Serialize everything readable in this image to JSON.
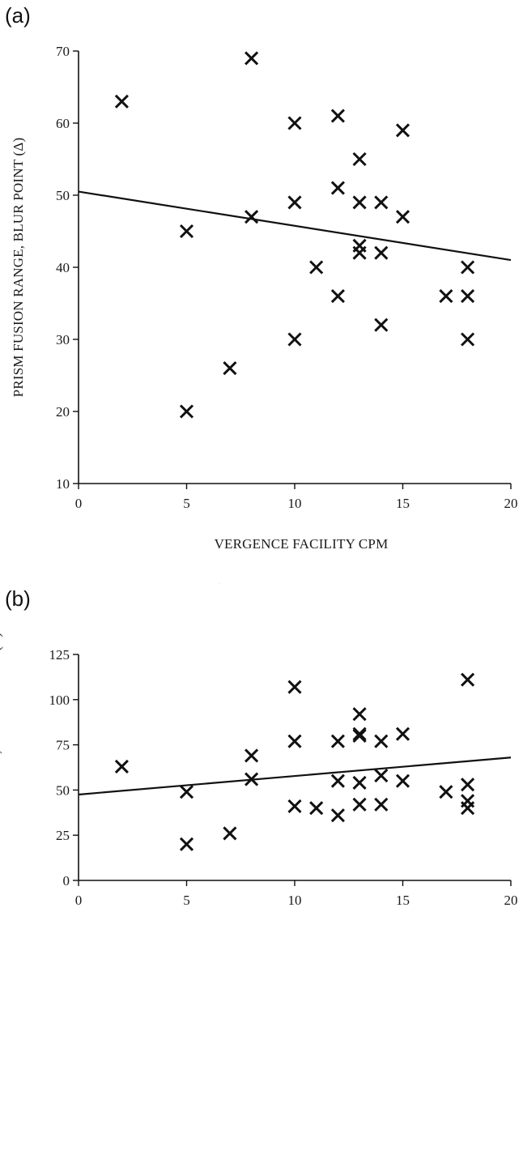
{
  "chart_data": [
    {
      "type": "scatter",
      "panel_label": "(a)",
      "xlabel": "VERGENCE FACILITY CPM",
      "ylabel": "PRISM FUSION RANGE, BLUR POINT (Δ)",
      "xlim": [
        0,
        20
      ],
      "ylim": [
        10,
        70
      ],
      "xticks": [
        0,
        5,
        10,
        15,
        20
      ],
      "yticks": [
        10,
        20,
        30,
        40,
        50,
        60,
        70
      ],
      "marker": "x",
      "points": [
        {
          "x": 2,
          "y": 63
        },
        {
          "x": 5,
          "y": 45
        },
        {
          "x": 5,
          "y": 20
        },
        {
          "x": 7,
          "y": 26
        },
        {
          "x": 8,
          "y": 69
        },
        {
          "x": 8,
          "y": 47
        },
        {
          "x": 10,
          "y": 60
        },
        {
          "x": 10,
          "y": 49
        },
        {
          "x": 10,
          "y": 30
        },
        {
          "x": 11,
          "y": 40
        },
        {
          "x": 12,
          "y": 61
        },
        {
          "x": 12,
          "y": 51
        },
        {
          "x": 12,
          "y": 36
        },
        {
          "x": 13,
          "y": 55
        },
        {
          "x": 13,
          "y": 49
        },
        {
          "x": 13,
          "y": 43
        },
        {
          "x": 13,
          "y": 42
        },
        {
          "x": 14,
          "y": 49
        },
        {
          "x": 14,
          "y": 42
        },
        {
          "x": 14,
          "y": 32
        },
        {
          "x": 15,
          "y": 59
        },
        {
          "x": 15,
          "y": 47
        },
        {
          "x": 17,
          "y": 36
        },
        {
          "x": 18,
          "y": 40
        },
        {
          "x": 18,
          "y": 36
        },
        {
          "x": 18,
          "y": 30
        }
      ],
      "regression_line": {
        "x": [
          0,
          20
        ],
        "y": [
          50.5,
          41
        ]
      }
    },
    {
      "type": "scatter",
      "panel_label": "(b)",
      "xlabel": "VERGENCE FACILITY CPM",
      "ylabel": "PRISM FUSION RANGE, BREAK POINT (Δ)",
      "xlim": [
        0,
        20
      ],
      "ylim": [
        0,
        125
      ],
      "xticks": [
        0,
        5,
        10,
        15,
        20
      ],
      "yticks": [
        0,
        25,
        50,
        75,
        100,
        125
      ],
      "marker": "x",
      "points": [
        {
          "x": 2,
          "y": 63
        },
        {
          "x": 5,
          "y": 49
        },
        {
          "x": 5,
          "y": 20
        },
        {
          "x": 7,
          "y": 26
        },
        {
          "x": 8,
          "y": 69
        },
        {
          "x": 8,
          "y": 56
        },
        {
          "x": 10,
          "y": 107
        },
        {
          "x": 10,
          "y": 77
        },
        {
          "x": 10,
          "y": 41
        },
        {
          "x": 11,
          "y": 40
        },
        {
          "x": 12,
          "y": 77
        },
        {
          "x": 12,
          "y": 55
        },
        {
          "x": 12,
          "y": 36
        },
        {
          "x": 13,
          "y": 92
        },
        {
          "x": 13,
          "y": 81
        },
        {
          "x": 13,
          "y": 80
        },
        {
          "x": 13,
          "y": 54
        },
        {
          "x": 13,
          "y": 42
        },
        {
          "x": 14,
          "y": 77
        },
        {
          "x": 14,
          "y": 58
        },
        {
          "x": 14,
          "y": 42
        },
        {
          "x": 15,
          "y": 81
        },
        {
          "x": 15,
          "y": 55
        },
        {
          "x": 17,
          "y": 49
        },
        {
          "x": 18,
          "y": 111
        },
        {
          "x": 18,
          "y": 53
        },
        {
          "x": 18,
          "y": 44
        },
        {
          "x": 18,
          "y": 40
        }
      ],
      "regression_line": {
        "x": [
          0,
          20
        ],
        "y": [
          47.5,
          68
        ]
      }
    }
  ]
}
